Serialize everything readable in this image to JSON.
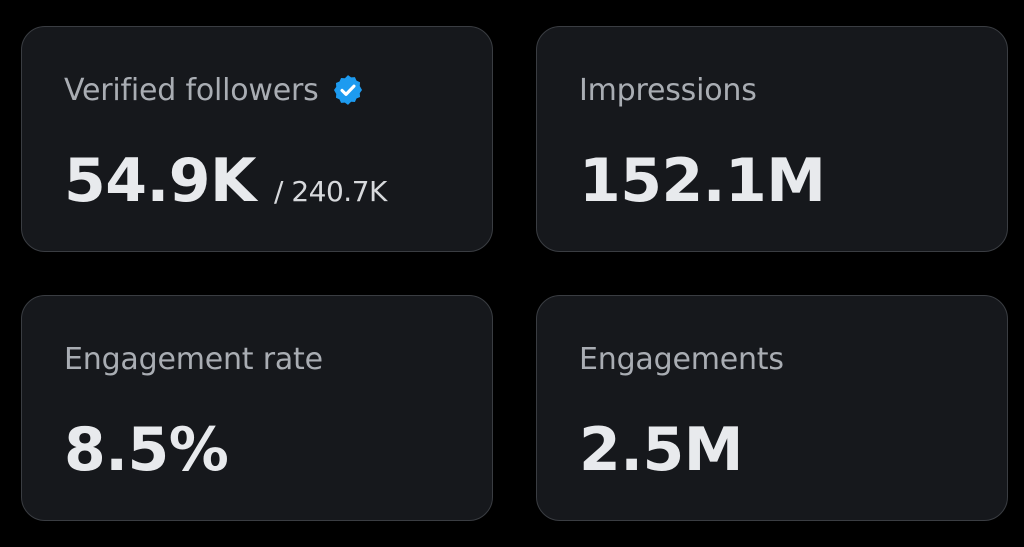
{
  "colors": {
    "background": "#000000",
    "card_background": "#16181c",
    "card_border": "#3a3d42",
    "label": "#a9adb3",
    "value": "#e8eaed",
    "verified_badge": "#1d9bf0"
  },
  "stats": [
    {
      "label": "Verified followers",
      "value": "54.9K",
      "sub_value": "/ 240.7K",
      "icon": "verified-badge-icon"
    },
    {
      "label": "Impressions",
      "value": "152.1M"
    },
    {
      "label": "Engagement rate",
      "value": "8.5%"
    },
    {
      "label": "Engagements",
      "value": "2.5M"
    }
  ]
}
